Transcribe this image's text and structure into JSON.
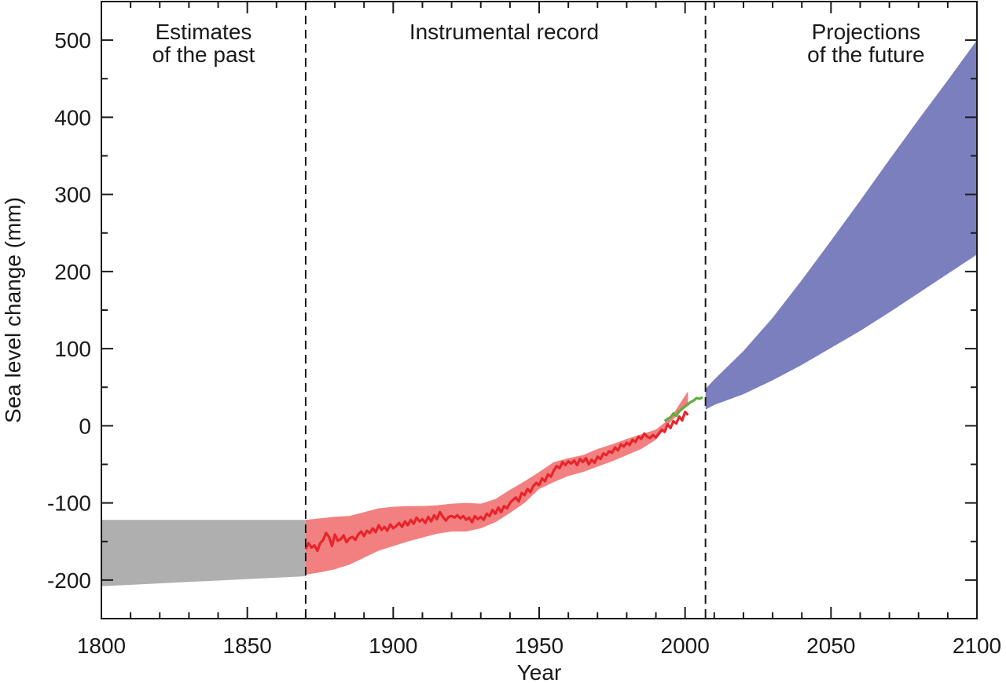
{
  "chart_data": {
    "type": "area",
    "xlabel": "Year",
    "ylabel": "Sea level change (mm)",
    "xlim": [
      1800,
      2100
    ],
    "ylim": [
      -250,
      550
    ],
    "x_ticks": [
      1800,
      1850,
      1900,
      1950,
      2000,
      2050,
      2100
    ],
    "y_ticks": [
      -200,
      -100,
      0,
      100,
      200,
      300,
      400,
      500
    ],
    "dividers": [
      1870,
      2007
    ],
    "annotations": [
      {
        "lines": [
          "Estimates",
          "of the past"
        ],
        "x": 1835
      },
      {
        "lines": [
          "Instrumental record"
        ],
        "x": 1938
      },
      {
        "lines": [
          "Projections",
          "of the future"
        ],
        "x": 2062
      }
    ],
    "colors": {
      "past_band": "#b0afb0",
      "record_band": "#f28080",
      "record_line": "#e8242b",
      "satellite_line": "#5cae3c",
      "projection_band": "#7b7fbd",
      "axis": "#1a1a1a"
    },
    "series": [
      {
        "kind": "band",
        "x": [
          1800,
          1870
        ],
        "upper": [
          -122,
          -122
        ],
        "lower": [
          -208,
          -195
        ]
      },
      {
        "kind": "band",
        "x": [
          1870,
          1875,
          1880,
          1885,
          1890,
          1895,
          1900,
          1905,
          1910,
          1915,
          1920,
          1925,
          1930,
          1935,
          1940,
          1945,
          1950,
          1955,
          1960,
          1965,
          1970,
          1975,
          1980,
          1985,
          1990,
          1995,
          2001
        ],
        "upper": [
          -122,
          -120,
          -118,
          -117,
          -112,
          -107,
          -105,
          -104,
          -104,
          -103,
          -101,
          -100,
          -101,
          -95,
          -83,
          -72,
          -60,
          -47,
          -42,
          -38,
          -30,
          -24,
          -17,
          -11,
          -5,
          10,
          45
        ],
        "lower": [
          -193,
          -190,
          -186,
          -180,
          -171,
          -162,
          -156,
          -150,
          -145,
          -140,
          -137,
          -137,
          -133,
          -125,
          -113,
          -100,
          -82,
          -73,
          -65,
          -60,
          -53,
          -46,
          -38,
          -30,
          -18,
          5,
          27
        ]
      },
      {
        "kind": "line",
        "name": "",
        "x": [
          1870,
          1871,
          1872,
          1873,
          1874,
          1875,
          1876,
          1877,
          1878,
          1879,
          1880,
          1881,
          1882,
          1883,
          1884,
          1885,
          1886,
          1887,
          1888,
          1889,
          1890,
          1891,
          1892,
          1893,
          1894,
          1895,
          1896,
          1897,
          1898,
          1899,
          1900,
          1901,
          1902,
          1903,
          1904,
          1905,
          1906,
          1907,
          1908,
          1909,
          1910,
          1911,
          1912,
          1913,
          1914,
          1915,
          1916,
          1917,
          1918,
          1919,
          1920,
          1921,
          1922,
          1923,
          1924,
          1925,
          1926,
          1927,
          1928,
          1929,
          1930,
          1931,
          1932,
          1933,
          1934,
          1935,
          1936,
          1937,
          1938,
          1939,
          1940,
          1941,
          1942,
          1943,
          1944,
          1945,
          1946,
          1947,
          1948,
          1949,
          1950,
          1951,
          1952,
          1953,
          1954,
          1955,
          1956,
          1957,
          1958,
          1959,
          1960,
          1961,
          1962,
          1963,
          1964,
          1965,
          1966,
          1967,
          1968,
          1969,
          1970,
          1971,
          1972,
          1973,
          1974,
          1975,
          1976,
          1977,
          1978,
          1979,
          1980,
          1981,
          1982,
          1983,
          1984,
          1985,
          1986,
          1987,
          1988,
          1989,
          1990,
          1991,
          1992,
          1993,
          1994,
          1995,
          1996,
          1997,
          1998,
          1999,
          2000,
          2001
        ],
        "y": [
          -160,
          -152,
          -158,
          -155,
          -162,
          -152,
          -148,
          -139,
          -144,
          -156,
          -141,
          -149,
          -147,
          -142,
          -151,
          -146,
          -144,
          -148,
          -141,
          -137,
          -143,
          -136,
          -139,
          -133,
          -138,
          -129,
          -135,
          -131,
          -136,
          -128,
          -133,
          -130,
          -126,
          -131,
          -124,
          -129,
          -122,
          -127,
          -119,
          -124,
          -121,
          -126,
          -118,
          -124,
          -116,
          -121,
          -112,
          -118,
          -123,
          -118,
          -117,
          -119,
          -116,
          -120,
          -117,
          -122,
          -119,
          -125,
          -117,
          -121,
          -118,
          -122,
          -114,
          -117,
          -109,
          -114,
          -106,
          -112,
          -104,
          -107,
          -100,
          -96,
          -93,
          -98,
          -87,
          -90,
          -82,
          -86,
          -78,
          -74,
          -77,
          -68,
          -72,
          -63,
          -66,
          -58,
          -52,
          -55,
          -47,
          -51,
          -46,
          -49,
          -45,
          -51,
          -43,
          -47,
          -42,
          -50,
          -44,
          -48,
          -40,
          -43,
          -36,
          -38,
          -33,
          -35,
          -28,
          -32,
          -24,
          -27,
          -22,
          -25,
          -18,
          -21,
          -14,
          -17,
          -10,
          -14,
          -16,
          -12,
          -15,
          -10,
          -5,
          -8,
          2,
          -3,
          6,
          3,
          12,
          7,
          18,
          14
        ]
      },
      {
        "kind": "line",
        "name": "",
        "x": [
          1993,
          1994,
          1995,
          1996,
          1997,
          1998,
          1999,
          2000,
          2001,
          2002,
          2003,
          2004,
          2005,
          2006
        ],
        "y": [
          6,
          9,
          11,
          16,
          13,
          19,
          22,
          25,
          28,
          31,
          33,
          36,
          35,
          37
        ]
      },
      {
        "kind": "band",
        "x": [
          2007,
          2010,
          2020,
          2030,
          2040,
          2050,
          2060,
          2070,
          2080,
          2090,
          2100
        ],
        "upper": [
          48,
          60,
          97,
          140,
          189,
          240,
          292,
          345,
          397,
          448,
          500
        ],
        "lower": [
          21,
          27,
          41,
          59,
          79,
          101,
          123,
          147,
          172,
          197,
          222
        ]
      }
    ]
  }
}
